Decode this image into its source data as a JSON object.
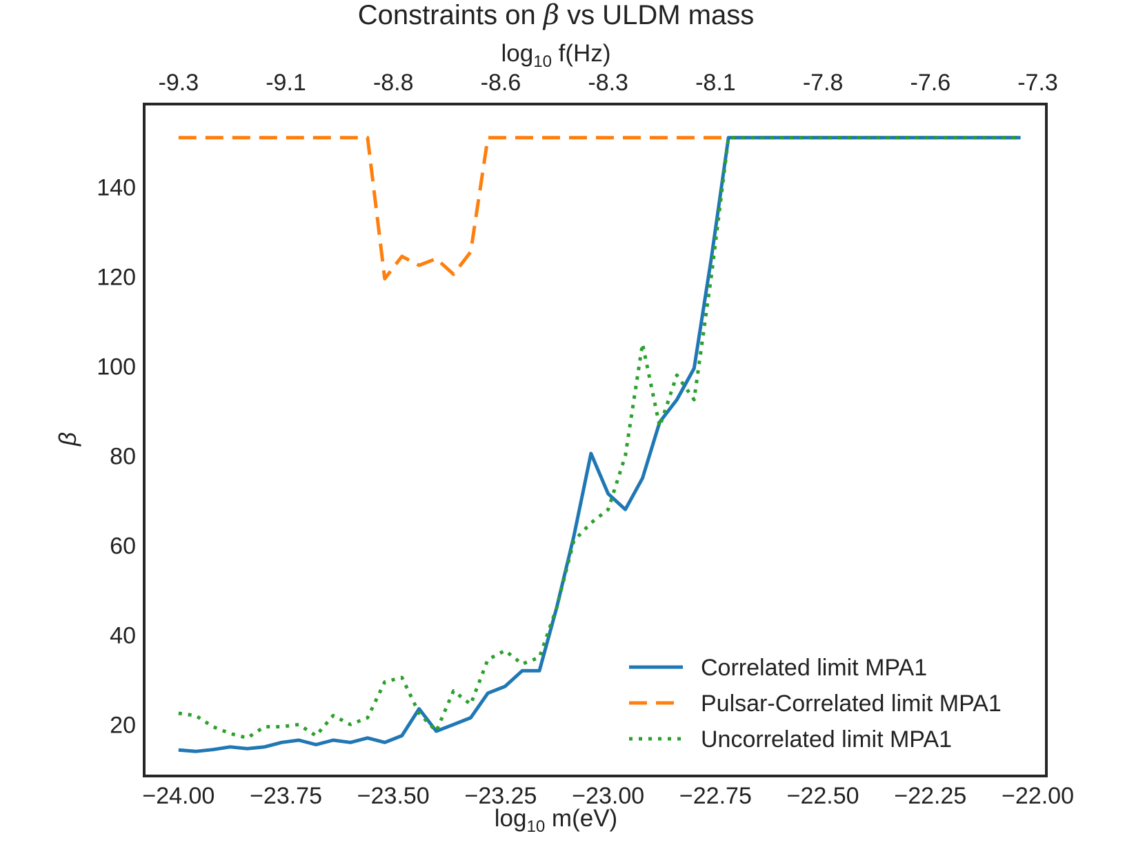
{
  "chart_data": {
    "type": "line",
    "title_prefix": "Constraints on ",
    "title_symbol": "β",
    "title_suffix": " vs ULDM mass",
    "xlabel_prefix": "log",
    "xlabel_sub": "10",
    "xlabel_suffix": " m(eV)",
    "x2label_prefix": "log",
    "x2label_sub": "10",
    "x2label_suffix": " f(Hz)",
    "ylabel": "β",
    "xlim": [
      -24.08,
      -21.98
    ],
    "ylim": [
      8.5,
      158.5
    ],
    "xticks": [
      -24.0,
      -23.75,
      -23.5,
      -23.25,
      -23.0,
      -22.75,
      -22.5,
      -22.25,
      -22.0
    ],
    "xtick_labels": [
      "−24.00",
      "−23.75",
      "−23.50",
      "−23.25",
      "−23.00",
      "−22.75",
      "−22.50",
      "−22.25",
      "−22.00"
    ],
    "x2ticks": [
      -24.0,
      -23.75,
      -23.5,
      -23.25,
      -23.0,
      -22.75,
      -22.5,
      -22.25,
      -22.0
    ],
    "x2tick_labels": [
      "-9.3",
      "-9.1",
      "-8.8",
      "-8.6",
      "-8.3",
      "-8.1",
      "-7.8",
      "-7.6",
      "-7.3"
    ],
    "yticks": [
      20,
      40,
      60,
      80,
      100,
      120,
      140
    ],
    "ytick_labels": [
      "20",
      "40",
      "60",
      "80",
      "100",
      "120",
      "140"
    ],
    "legend_position": "lower-right",
    "series": [
      {
        "name": "Correlated limit MPA1",
        "color": "#1f77b4",
        "style": "solid",
        "x": [
          -24.0,
          -23.96,
          -23.92,
          -23.88,
          -23.84,
          -23.8,
          -23.76,
          -23.72,
          -23.68,
          -23.64,
          -23.6,
          -23.56,
          -23.52,
          -23.48,
          -23.44,
          -23.4,
          -23.36,
          -23.32,
          -23.28,
          -23.24,
          -23.2,
          -23.16,
          -23.12,
          -23.08,
          -23.04,
          -23.0,
          -22.96,
          -22.92,
          -22.88,
          -22.84,
          -22.8,
          -22.76,
          -22.72,
          -22.68,
          -22.64,
          -22.6,
          -22.55,
          -22.5,
          -22.45,
          -22.4,
          -22.35,
          -22.3,
          -22.25,
          -22.2,
          -22.15,
          -22.1,
          -22.05,
          -22.04
        ],
        "y": [
          14.3,
          14.0,
          14.4,
          15.0,
          14.6,
          15.0,
          16.0,
          16.5,
          15.5,
          16.5,
          16.0,
          17.0,
          16.0,
          17.5,
          23.5,
          18.5,
          20.0,
          21.5,
          27.0,
          28.5,
          32.0,
          32.0,
          46.0,
          62.0,
          80.5,
          71.5,
          68.0,
          75.0,
          87.5,
          92.5,
          99.5,
          124.0,
          151.0,
          151.0,
          151.0,
          151.0,
          151.0,
          151.0,
          151.0,
          151.0,
          151.0,
          151.0,
          151.0,
          151.0,
          151.0,
          151.0,
          151.0,
          151.0
        ]
      },
      {
        "name": "Pulsar-Correlated limit MPA1",
        "color": "#ff7f0e",
        "style": "dashed",
        "x": [
          -24.0,
          -23.9,
          -23.8,
          -23.7,
          -23.6,
          -23.56,
          -23.52,
          -23.48,
          -23.44,
          -23.4,
          -23.36,
          -23.32,
          -23.28,
          -23.24,
          -23.2,
          -23.1,
          -23.0,
          -22.9,
          -22.8,
          -22.7,
          -22.6,
          -22.5,
          -22.4,
          -22.3,
          -22.2,
          -22.1,
          -22.04
        ],
        "y": [
          151.0,
          151.0,
          151.0,
          151.0,
          151.0,
          151.0,
          119.5,
          124.5,
          122.5,
          124.0,
          120.5,
          125.5,
          151.0,
          151.0,
          151.0,
          151.0,
          151.0,
          151.0,
          151.0,
          151.0,
          151.0,
          151.0,
          151.0,
          151.0,
          151.0,
          151.0,
          151.0
        ]
      },
      {
        "name": "Uncorrelated limit MPA1",
        "color": "#2ca02c",
        "style": "dotted",
        "x": [
          -24.0,
          -23.96,
          -23.92,
          -23.88,
          -23.84,
          -23.8,
          -23.76,
          -23.72,
          -23.68,
          -23.64,
          -23.6,
          -23.56,
          -23.52,
          -23.48,
          -23.44,
          -23.4,
          -23.36,
          -23.32,
          -23.28,
          -23.24,
          -23.2,
          -23.16,
          -23.12,
          -23.08,
          -23.04,
          -23.0,
          -22.96,
          -22.92,
          -22.88,
          -22.84,
          -22.8,
          -22.76,
          -22.72,
          -22.68,
          -22.6,
          -22.5,
          -22.4,
          -22.3,
          -22.2,
          -22.1,
          -22.04
        ],
        "y": [
          22.5,
          22.0,
          19.5,
          18.0,
          17.0,
          19.5,
          19.5,
          20.0,
          17.5,
          22.0,
          20.0,
          21.5,
          29.5,
          30.5,
          22.5,
          18.5,
          27.5,
          24.5,
          34.5,
          36.5,
          33.5,
          35.0,
          46.0,
          61.0,
          65.0,
          68.0,
          80.0,
          105.0,
          86.5,
          98.0,
          92.5,
          120.0,
          151.0,
          151.0,
          151.0,
          151.0,
          151.0,
          151.0,
          151.0,
          151.0,
          151.0
        ]
      }
    ]
  }
}
